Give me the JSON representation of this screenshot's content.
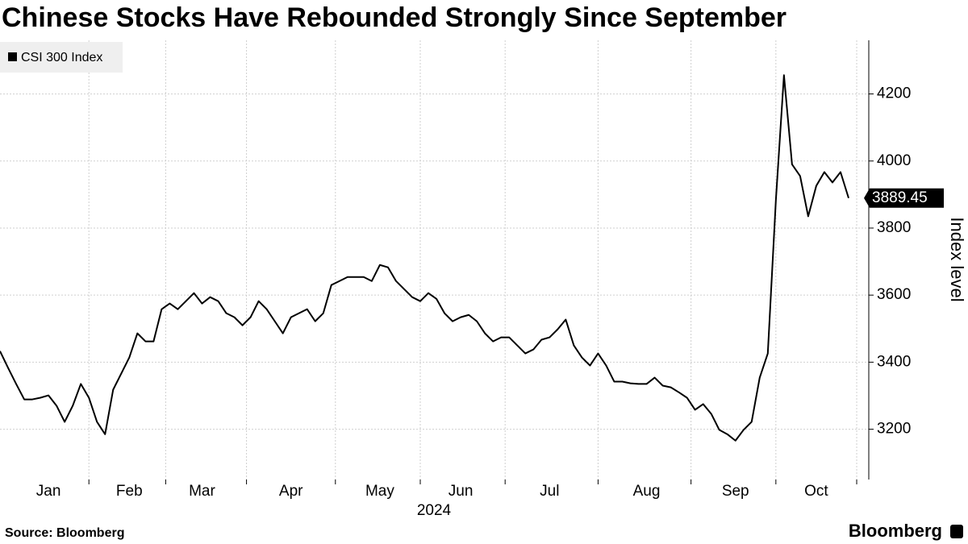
{
  "chart_data": {
    "type": "line",
    "title": "Chinese Stocks Have Rebounded Strongly Since September",
    "x_label": "2024",
    "y_label": "Index level",
    "source": "Source: Bloomberg",
    "brand": "Bloomberg",
    "categories": [
      null,
      null,
      null,
      null,
      null,
      null,
      "Jan",
      null,
      null,
      null,
      null,
      null,
      null,
      null,
      null,
      null,
      "Feb",
      null,
      null,
      null,
      null,
      null,
      null,
      null,
      null,
      "Mar",
      null,
      null,
      null,
      null,
      null,
      null,
      null,
      null,
      null,
      null,
      "Apr",
      null,
      null,
      null,
      null,
      null,
      null,
      null,
      null,
      null,
      null,
      "May",
      null,
      null,
      null,
      null,
      null,
      null,
      null,
      null,
      null,
      "Jun",
      null,
      null,
      null,
      null,
      null,
      null,
      null,
      null,
      null,
      null,
      "Jul",
      null,
      null,
      null,
      null,
      null,
      null,
      null,
      null,
      null,
      null,
      null,
      "Aug",
      null,
      null,
      null,
      null,
      null,
      null,
      null,
      null,
      null,
      null,
      "Sep",
      null,
      null,
      null,
      null,
      null,
      null,
      null,
      null,
      null,
      "Oct",
      null,
      null,
      null,
      null
    ],
    "series": [
      {
        "name": "CSI 300 Index",
        "color": "#000000",
        "values": [
          3433,
          3383,
          3335,
          3289,
          3289,
          3294,
          3301,
          3270,
          3222,
          3270,
          3335,
          3294,
          3222,
          3185,
          3318,
          3366,
          3414,
          3486,
          3462,
          3462,
          3558,
          3575,
          3558,
          3582,
          3606,
          3575,
          3594,
          3582,
          3546,
          3534,
          3510,
          3534,
          3582,
          3558,
          3522,
          3486,
          3534,
          3546,
          3558,
          3522,
          3546,
          3630,
          3642,
          3654,
          3654,
          3654,
          3642,
          3690,
          3683,
          3642,
          3618,
          3594,
          3582,
          3606,
          3589,
          3546,
          3522,
          3534,
          3541,
          3522,
          3486,
          3462,
          3474,
          3474,
          3450,
          3426,
          3438,
          3467,
          3474,
          3498,
          3527,
          3450,
          3414,
          3390,
          3426,
          3390,
          3342,
          3342,
          3337,
          3335,
          3335,
          3354,
          3330,
          3325,
          3310,
          3294,
          3258,
          3275,
          3246,
          3198,
          3185,
          3166,
          3198,
          3222,
          3354,
          3426,
          3883,
          4256,
          3990,
          3955,
          3835,
          3926,
          3967,
          3936,
          3967,
          3889.45
        ]
      }
    ],
    "ylim": [
      3050,
      4360
    ],
    "yticks": [
      3200,
      3400,
      3600,
      3800,
      4000,
      4200
    ],
    "grid": true,
    "legend": "top-left"
  }
}
